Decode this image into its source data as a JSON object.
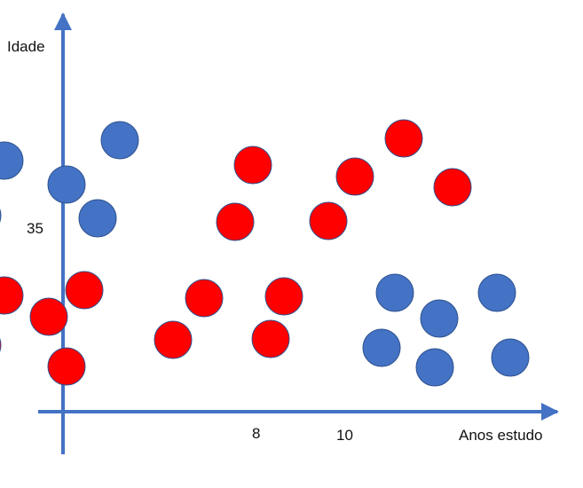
{
  "chart_data": {
    "type": "scatter",
    "xlabel": "Anos estudo",
    "ylabel": "Idade",
    "xticks": [
      "8",
      "10"
    ],
    "yticks": [
      "35"
    ],
    "grid": false,
    "legend": "none",
    "colors": {
      "axis": "#4472C4",
      "blue_point": "#4472C4",
      "red_point": "#FF0000"
    },
    "series": [
      {
        "color": "#4472C4",
        "points": [
          [
            2.3,
            42.5
          ],
          [
            4.9,
            44.8
          ],
          [
            3.7,
            39.8
          ],
          [
            1.8,
            36.3
          ],
          [
            4.4,
            36.0
          ],
          [
            11.1,
            27.6
          ],
          [
            13.4,
            27.6
          ],
          [
            12.1,
            24.7
          ],
          [
            10.8,
            21.4
          ],
          [
            12.0,
            19.2
          ],
          [
            13.7,
            20.3
          ]
        ]
      },
      {
        "color": "#FF0000",
        "points": [
          [
            11.3,
            45.0
          ],
          [
            7.9,
            42.0
          ],
          [
            10.2,
            40.7
          ],
          [
            12.4,
            39.5
          ],
          [
            7.5,
            35.6
          ],
          [
            9.6,
            35.7
          ],
          [
            2.3,
            27.3
          ],
          [
            4.1,
            27.9
          ],
          [
            6.8,
            27.0
          ],
          [
            8.6,
            27.2
          ],
          [
            3.3,
            24.9
          ],
          [
            1.8,
            21.7
          ],
          [
            6.1,
            22.3
          ],
          [
            8.3,
            22.4
          ],
          [
            3.7,
            19.3
          ]
        ]
      }
    ]
  }
}
